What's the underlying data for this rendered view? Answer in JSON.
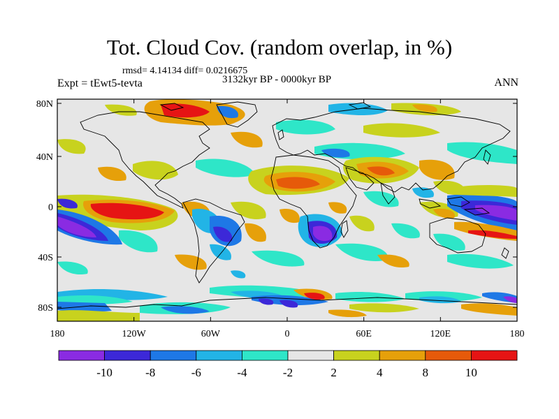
{
  "header": {
    "title": "Tot. Cloud Cov. (random overlap, in %)",
    "stats": "rmsd= 4.14134 diff= 0.0216675",
    "period": "3132kyr BP - 0000kyr BP",
    "experiment": "Expt = tEwt5-tevta",
    "season": "ANN"
  },
  "map_axes": {
    "lat_ticks": [
      "80N",
      "40N",
      "0",
      "40S",
      "80S"
    ],
    "lon_ticks": [
      "180",
      "120W",
      "60W",
      "0",
      "60E",
      "120E",
      "180"
    ]
  },
  "colorbar": {
    "labels": [
      "-10",
      "-8",
      "-6",
      "-4",
      "-2",
      "2",
      "4",
      "8",
      "10"
    ],
    "colors": [
      "#8a2be2",
      "#3c28d8",
      "#1e78e6",
      "#22b4e6",
      "#2ee6c8",
      "#e6e6e6",
      "#c8d21e",
      "#e6a00a",
      "#e65a0a",
      "#e61414"
    ]
  },
  "colors": {
    "ocean_background": "#e6e6e6",
    "coastline": "#000000"
  }
}
